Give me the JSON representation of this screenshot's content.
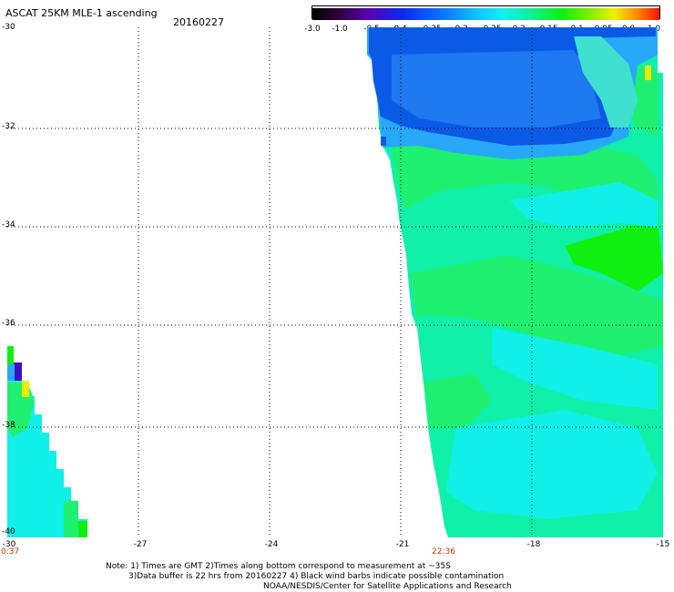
{
  "title": "ASCAT 25KM MLE-1 ascending",
  "date": "20160227",
  "colorbar": {
    "labels": [
      "-3.0",
      "-1.0",
      "-0.5",
      "-0.4",
      "-0.35",
      "-0.3",
      "-0.25",
      "-0.2",
      "-0.15",
      "-0.1",
      "-0.05",
      "0.0",
      "1.0"
    ]
  },
  "latitude_labels": [
    "-30",
    "-32",
    "-34",
    "-36",
    "-38",
    "-40"
  ],
  "longitude_labels": [
    "-30",
    "-27",
    "-24",
    "-21",
    "-18",
    "-15"
  ],
  "time_labels": {
    "left": "0:37",
    "right": "22:36"
  },
  "notes": {
    "line1": "Note: 1) Times are GMT 2)Times along bottom correspond to measurement at ~35S",
    "line2": "3)Data buffer is 22 hrs from 20160227 4) Black wind barbs indicate possible contamination",
    "line3": "NOAA/NESDIS/Center for Satellite Applications and Research"
  },
  "colors": {
    "blue_dark": "#0a5ae6",
    "blue": "#1e78f0",
    "sky": "#28a8f8",
    "cyan": "#10f0f0",
    "aqua_green": "#10f0b0",
    "green_light": "#20f070",
    "green": "#10f010",
    "yellow": "#e8f000",
    "purple": "#4010c0"
  }
}
